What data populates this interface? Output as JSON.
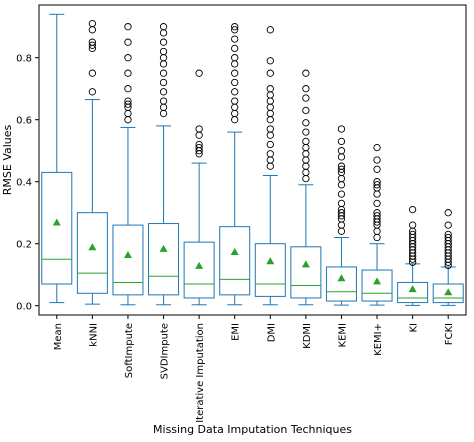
{
  "chart_data": {
    "type": "box",
    "title": "",
    "xlabel": "Missing Data Imputation Techniques",
    "ylabel": "RMSE Values",
    "ylim": [
      -0.03,
      0.97
    ],
    "yticks": [
      "0.0",
      "0.2",
      "0.4",
      "0.6",
      "0.8"
    ],
    "ytick_values": [
      0.0,
      0.2,
      0.4,
      0.6,
      0.8
    ],
    "grid": false,
    "legend": "none",
    "colors": {
      "box": "#1f77b4",
      "median": "#2ca02c",
      "mean": "#2ca02c",
      "flier": "#000000"
    },
    "categories": [
      "Mean",
      "kNNI",
      "SoftImpute",
      "SVDImpute",
      "Iterative Imputation",
      "EMI",
      "DMI",
      "KDMI",
      "KEMI",
      "KEMI+",
      "KI",
      "FCKI"
    ],
    "boxes": [
      {
        "whisker_low": 0.01,
        "q1": 0.07,
        "median": 0.15,
        "q3": 0.43,
        "whisker_high": 0.94,
        "mean": 0.27,
        "outliers": []
      },
      {
        "whisker_low": 0.005,
        "q1": 0.04,
        "median": 0.105,
        "q3": 0.3,
        "whisker_high": 0.665,
        "mean": 0.19,
        "outliers": [
          0.69,
          0.75,
          0.83,
          0.84,
          0.85,
          0.89,
          0.91
        ]
      },
      {
        "whisker_low": 0.003,
        "q1": 0.035,
        "median": 0.075,
        "q3": 0.26,
        "whisker_high": 0.575,
        "mean": 0.165,
        "outliers": [
          0.6,
          0.62,
          0.64,
          0.65,
          0.66,
          0.7,
          0.75,
          0.8,
          0.85,
          0.9
        ]
      },
      {
        "whisker_low": 0.003,
        "q1": 0.035,
        "median": 0.095,
        "q3": 0.265,
        "whisker_high": 0.58,
        "mean": 0.185,
        "outliers": [
          0.62,
          0.64,
          0.66,
          0.69,
          0.72,
          0.75,
          0.78,
          0.8,
          0.82,
          0.85,
          0.88,
          0.9
        ]
      },
      {
        "whisker_low": 0.003,
        "q1": 0.025,
        "median": 0.07,
        "q3": 0.205,
        "whisker_high": 0.46,
        "mean": 0.13,
        "outliers": [
          0.49,
          0.5,
          0.51,
          0.52,
          0.55,
          0.57,
          0.75
        ]
      },
      {
        "whisker_low": 0.003,
        "q1": 0.035,
        "median": 0.085,
        "q3": 0.255,
        "whisker_high": 0.56,
        "mean": 0.175,
        "outliers": [
          0.6,
          0.62,
          0.64,
          0.66,
          0.69,
          0.72,
          0.75,
          0.78,
          0.8,
          0.83,
          0.86,
          0.89,
          0.9
        ]
      },
      {
        "whisker_low": 0.003,
        "q1": 0.03,
        "median": 0.07,
        "q3": 0.2,
        "whisker_high": 0.42,
        "mean": 0.145,
        "outliers": [
          0.45,
          0.47,
          0.49,
          0.52,
          0.55,
          0.57,
          0.6,
          0.62,
          0.64,
          0.66,
          0.68,
          0.7,
          0.75,
          0.79,
          0.89
        ]
      },
      {
        "whisker_low": 0.003,
        "q1": 0.025,
        "median": 0.065,
        "q3": 0.19,
        "whisker_high": 0.39,
        "mean": 0.135,
        "outliers": [
          0.41,
          0.43,
          0.45,
          0.47,
          0.49,
          0.51,
          0.53,
          0.56,
          0.59,
          0.63,
          0.67,
          0.7,
          0.75
        ]
      },
      {
        "whisker_low": 0.002,
        "q1": 0.015,
        "median": 0.045,
        "q3": 0.125,
        "whisker_high": 0.22,
        "mean": 0.09,
        "outliers": [
          0.24,
          0.26,
          0.28,
          0.29,
          0.3,
          0.31,
          0.33,
          0.36,
          0.39,
          0.41,
          0.43,
          0.44,
          0.45,
          0.48,
          0.5,
          0.53,
          0.57
        ]
      },
      {
        "whisker_low": 0.002,
        "q1": 0.015,
        "median": 0.04,
        "q3": 0.115,
        "whisker_high": 0.2,
        "mean": 0.08,
        "outliers": [
          0.22,
          0.24,
          0.26,
          0.27,
          0.28,
          0.29,
          0.3,
          0.33,
          0.36,
          0.38,
          0.39,
          0.4,
          0.44,
          0.47,
          0.51
        ]
      },
      {
        "whisker_low": 0.001,
        "q1": 0.01,
        "median": 0.025,
        "q3": 0.075,
        "whisker_high": 0.135,
        "mean": 0.055,
        "outliers": [
          0.14,
          0.15,
          0.16,
          0.17,
          0.18,
          0.19,
          0.2,
          0.21,
          0.22,
          0.23,
          0.24,
          0.26,
          0.31
        ]
      },
      {
        "whisker_low": 0.001,
        "q1": 0.01,
        "median": 0.025,
        "q3": 0.07,
        "whisker_high": 0.125,
        "mean": 0.045,
        "outliers": [
          0.13,
          0.14,
          0.15,
          0.16,
          0.17,
          0.18,
          0.19,
          0.2,
          0.21,
          0.22,
          0.23,
          0.26,
          0.3
        ]
      }
    ]
  }
}
